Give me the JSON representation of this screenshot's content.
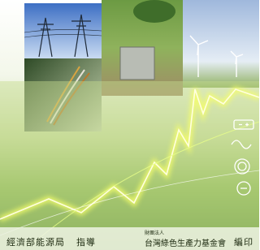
{
  "footer": {
    "guidance_org": "經濟部能源局",
    "guidance_role": "指導",
    "publisher_prefix": "財團法人",
    "publisher": "台灣綠色生產力基金會",
    "publisher_role": "編印"
  }
}
